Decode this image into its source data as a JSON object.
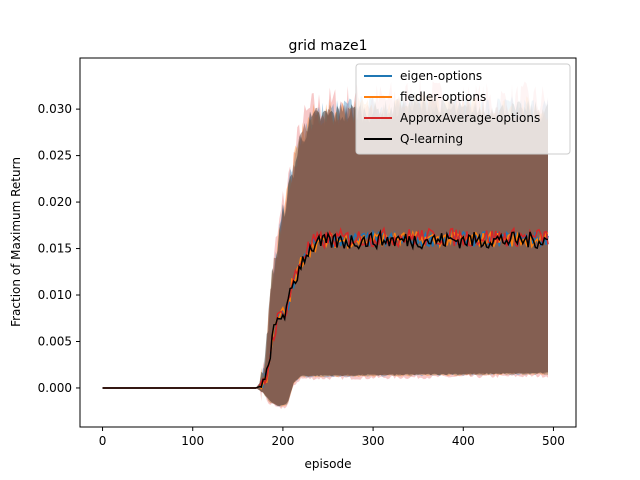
{
  "chart_data": {
    "type": "line",
    "title": "grid  maze1",
    "xlabel": "episode",
    "ylabel": "Fraction of Maximum Return",
    "xlim": [
      -25,
      525
    ],
    "ylim": [
      -0.0042,
      0.0355
    ],
    "xticks": [
      0,
      100,
      200,
      300,
      400,
      500
    ],
    "yticks": [
      0.0,
      0.005,
      0.01,
      0.015,
      0.02,
      0.025,
      0.03
    ],
    "xtick_labels": [
      "0",
      "100",
      "200",
      "300",
      "400",
      "500"
    ],
    "ytick_labels": [
      "0.000",
      "0.005",
      "0.010",
      "0.015",
      "0.020",
      "0.025",
      "0.030"
    ],
    "legend_position": "top-right",
    "x_range": [
      0,
      495
    ],
    "series": [
      {
        "name": "eigen-options",
        "color": "#1f77b4",
        "fill_color": "#1f77b4"
      },
      {
        "name": "fiedler-options",
        "color": "#ff7f0e",
        "fill_color": "#ff7f0e"
      },
      {
        "name": "ApproxAverage-options",
        "color": "#d62728",
        "fill_color": "#f4b6b6"
      },
      {
        "name": "Q-learning",
        "color": "#000000",
        "fill_color": "#3d3d3d"
      }
    ],
    "mean_profile": [
      [
        0,
        0.0
      ],
      [
        170,
        0.0
      ],
      [
        178,
        0.0003
      ],
      [
        183,
        0.0015
      ],
      [
        186,
        0.004
      ],
      [
        190,
        0.006
      ],
      [
        195,
        0.0075
      ],
      [
        200,
        0.008
      ],
      [
        205,
        0.0085
      ],
      [
        210,
        0.011
      ],
      [
        215,
        0.012
      ],
      [
        220,
        0.0135
      ],
      [
        225,
        0.0145
      ],
      [
        235,
        0.0155
      ],
      [
        250,
        0.0158
      ],
      [
        300,
        0.016
      ],
      [
        400,
        0.016
      ],
      [
        495,
        0.016
      ]
    ],
    "upper_band_profile": [
      [
        0,
        0.0
      ],
      [
        170,
        0.0
      ],
      [
        178,
        0.001
      ],
      [
        183,
        0.006
      ],
      [
        188,
        0.012
      ],
      [
        195,
        0.016
      ],
      [
        200,
        0.019
      ],
      [
        210,
        0.023
      ],
      [
        220,
        0.027
      ],
      [
        230,
        0.029
      ],
      [
        245,
        0.0295
      ],
      [
        280,
        0.03
      ],
      [
        300,
        0.03
      ],
      [
        350,
        0.0305
      ],
      [
        400,
        0.03
      ],
      [
        450,
        0.03
      ],
      [
        495,
        0.03
      ]
    ],
    "lower_band_profile": [
      [
        0,
        0.0
      ],
      [
        170,
        0.0
      ],
      [
        178,
        -0.0005
      ],
      [
        185,
        -0.0015
      ],
      [
        195,
        -0.002
      ],
      [
        205,
        -0.0018
      ],
      [
        212,
        0.0005
      ],
      [
        220,
        0.0012
      ],
      [
        300,
        0.0013
      ],
      [
        400,
        0.0014
      ],
      [
        495,
        0.0015
      ]
    ]
  }
}
